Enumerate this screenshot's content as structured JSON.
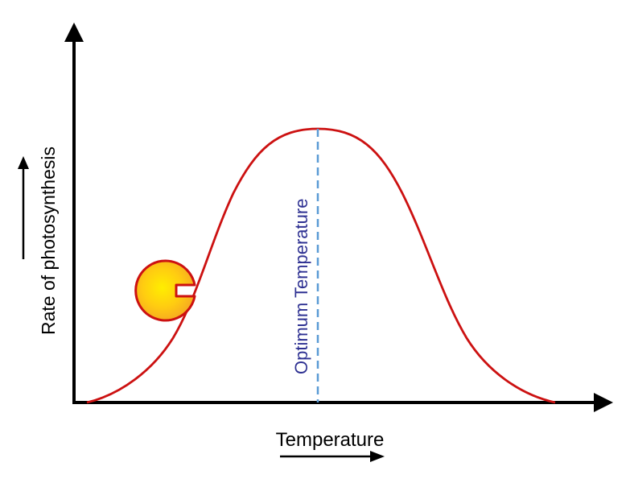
{
  "diagram": {
    "x_axis_label": "Temperature",
    "y_axis_label": "Rate of photosynthesis",
    "peak_label": "Optimum Temperature",
    "colors": {
      "axes": "#000000",
      "curve": "#cc1111",
      "optimum_line": "#5b9bd5",
      "optimum_text": "#2e3192",
      "enzyme_fill_center": "#ffee00",
      "enzyme_fill_edge": "#f5a623",
      "enzyme_outline": "#cc1111"
    },
    "icons": {
      "enzyme": "enzyme-icon",
      "x_direction": "arrow-right-icon",
      "y_direction": "arrow-up-icon"
    }
  }
}
